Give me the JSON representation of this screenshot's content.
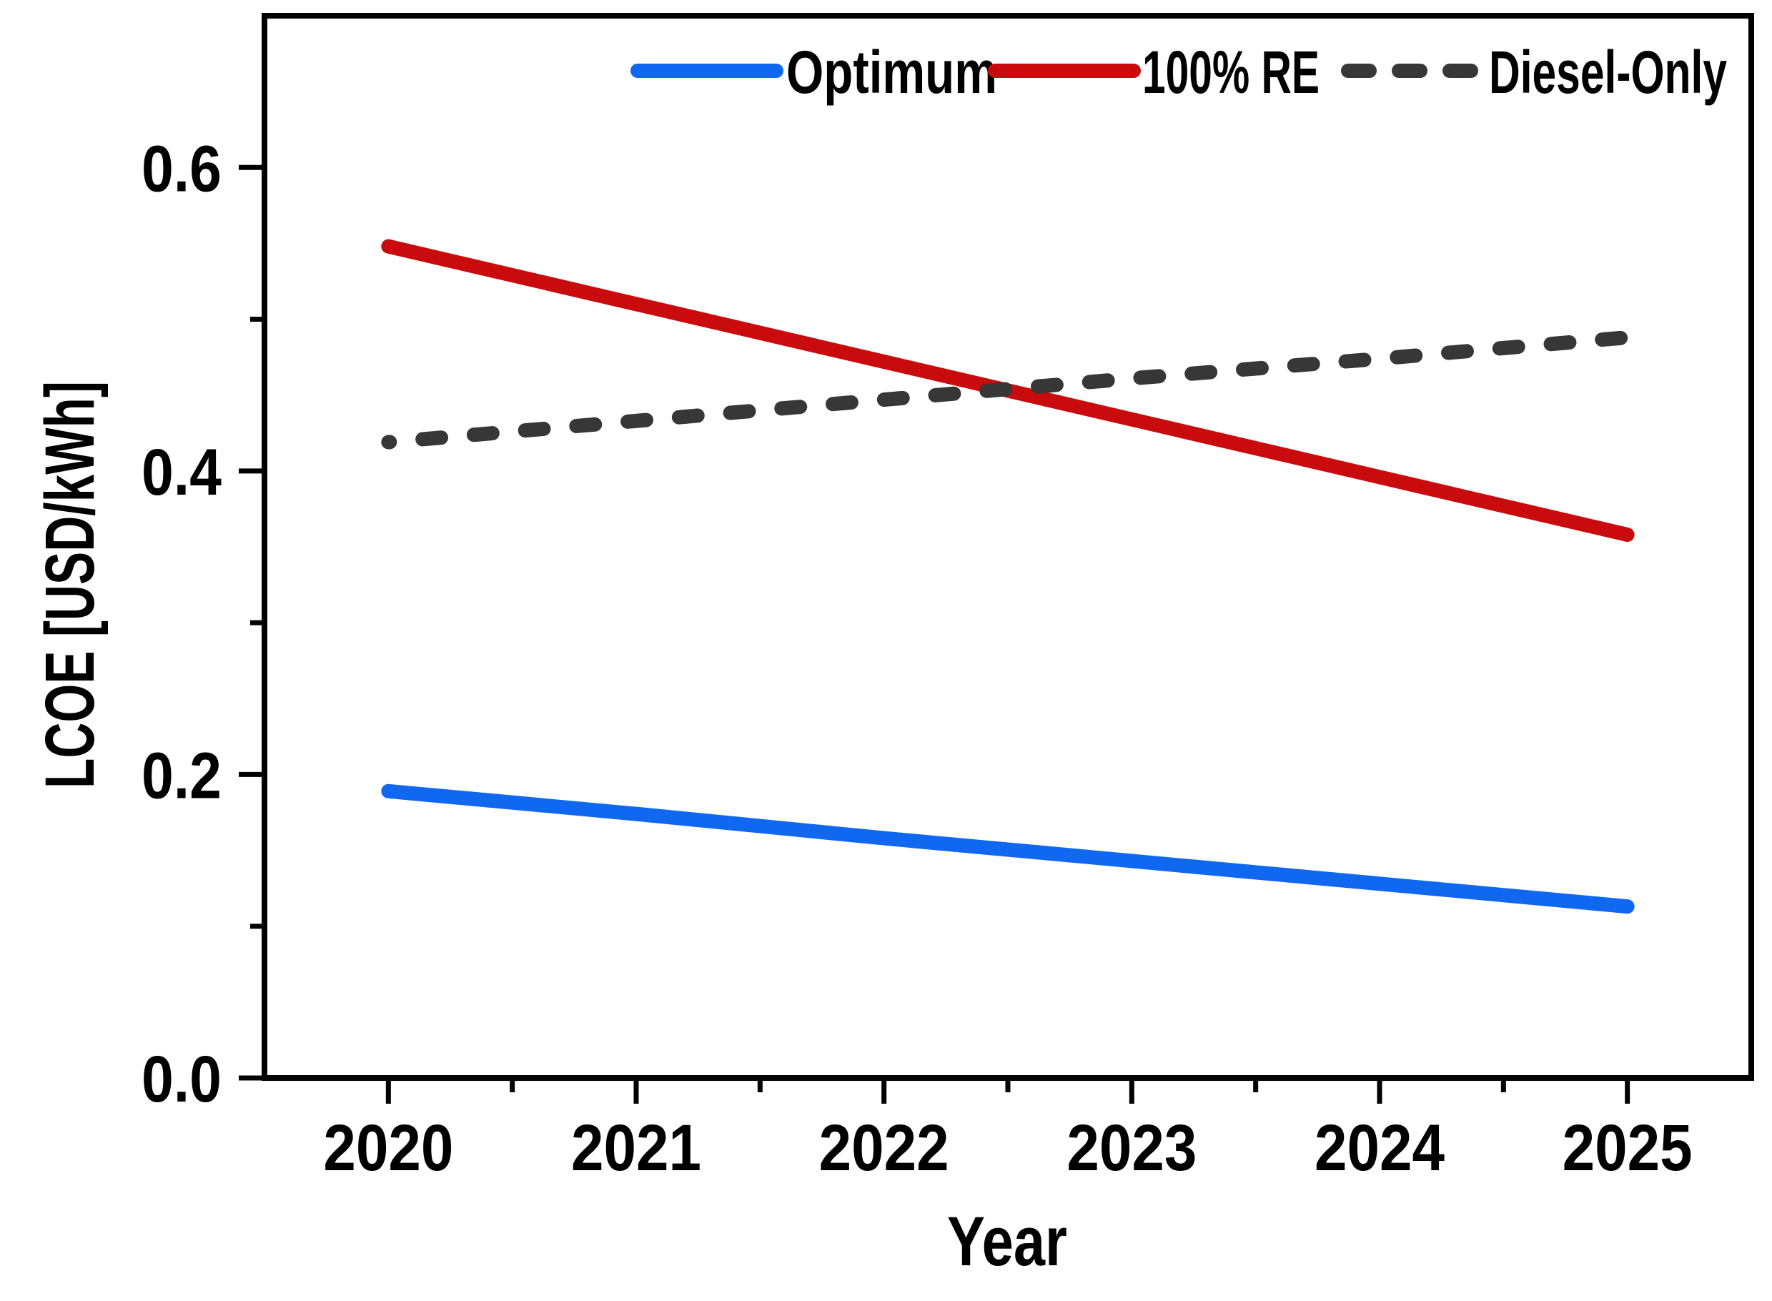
{
  "figure": {
    "background": "#ffffff",
    "frame_color": "#000000",
    "text_color": "#000000"
  },
  "legend": {
    "items": [
      {
        "label": "Optimum",
        "color": "#1068f0",
        "line_style": "solid"
      },
      {
        "label": "100% RE",
        "color": "#c90b0e",
        "line_style": "solid"
      },
      {
        "label": "Diesel-Only",
        "color": "#373737",
        "line_style": "dashed"
      }
    ]
  },
  "axes": {
    "x": {
      "title": "Year",
      "ticks": [
        2020,
        2021,
        2022,
        2023,
        2024,
        2025
      ],
      "tick_labels": [
        "2020",
        "2021",
        "2022",
        "2023",
        "2024",
        "2025"
      ],
      "minor_ticks": [
        2020.5,
        2021.5,
        2022.5,
        2023.5,
        2024.5
      ],
      "range": [
        2019.5,
        2025.5
      ]
    },
    "y": {
      "title": "LCOE [USD/kWh]",
      "ticks": [
        0.0,
        0.2,
        0.4,
        0.6
      ],
      "tick_labels": [
        "0.0",
        "0.2",
        "0.4",
        "0.6"
      ],
      "minor_ticks": [
        0.1,
        0.3,
        0.5
      ],
      "range": [
        0.0,
        0.7
      ]
    }
  },
  "chart_data": {
    "type": "line",
    "x": [
      2020,
      2021,
      2022,
      2023,
      2024,
      2025
    ],
    "series": [
      {
        "name": "Optimum",
        "color": "#1068f0",
        "line_style": "solid",
        "values": [
          0.189,
          0.174,
          0.158,
          0.143,
          0.128,
          0.113
        ]
      },
      {
        "name": "100% RE",
        "color": "#c90b0e",
        "line_style": "solid",
        "values": [
          0.548,
          0.51,
          0.472,
          0.434,
          0.396,
          0.358
        ]
      },
      {
        "name": "Diesel-Only",
        "color": "#373737",
        "line_style": "dashed",
        "values": [
          0.419,
          0.433,
          0.447,
          0.461,
          0.474,
          0.488
        ]
      }
    ],
    "title": "",
    "xlabel": "Year",
    "ylabel": "LCOE [USD/kWh]",
    "xlim": [
      2019.5,
      2025.5
    ],
    "ylim": [
      0.0,
      0.7
    ],
    "grid": false,
    "legend_position": "top-inside"
  }
}
